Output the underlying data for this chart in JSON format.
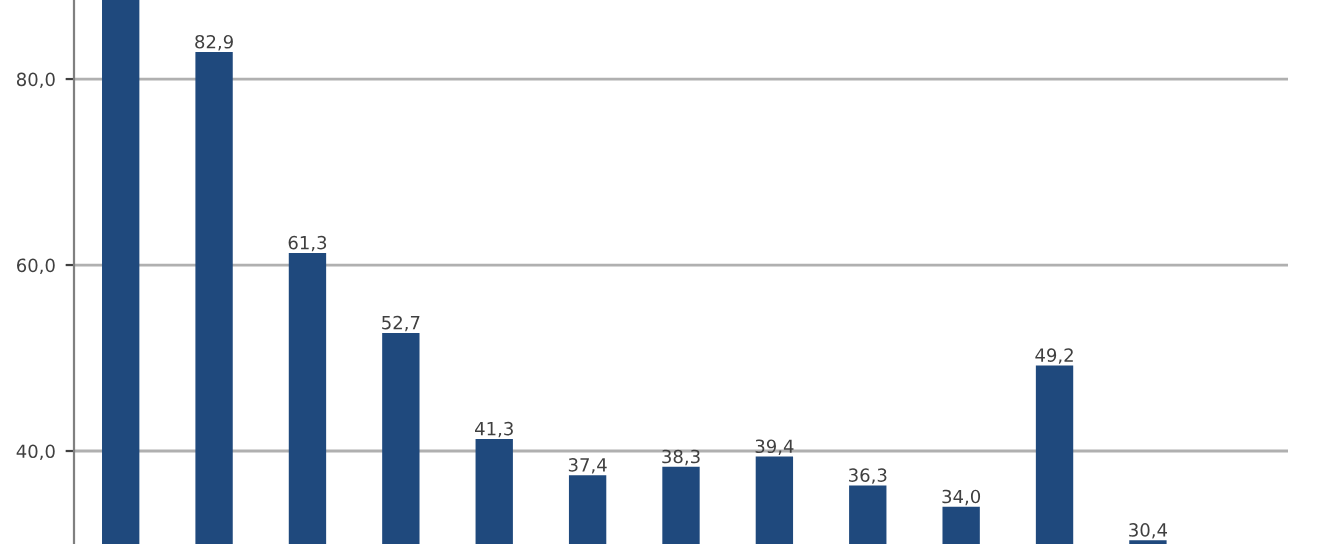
{
  "chart_data": {
    "type": "bar",
    "categories": [
      null,
      null,
      null,
      null,
      null,
      null,
      null,
      null,
      null,
      null,
      null,
      null,
      null
    ],
    "values": [
      88.5,
      82.9,
      61.3,
      52.7,
      41.3,
      37.4,
      38.3,
      39.4,
      36.3,
      34.0,
      49.2,
      30.4,
      null
    ],
    "value_labels": [
      null,
      "82,9",
      "61,3",
      "52,7",
      "41,3",
      "37,4",
      "38,3",
      "39,4",
      "36,3",
      "34,0",
      "49,2",
      "30,4",
      null
    ],
    "color": "#1f497d",
    "ylim": [
      30,
      88.5
    ],
    "yticks": [
      {
        "value": 40,
        "label": "40,0"
      },
      {
        "value": 60,
        "label": "60,0"
      },
      {
        "value": 80,
        "label": "80,0"
      }
    ],
    "grid": "y"
  }
}
